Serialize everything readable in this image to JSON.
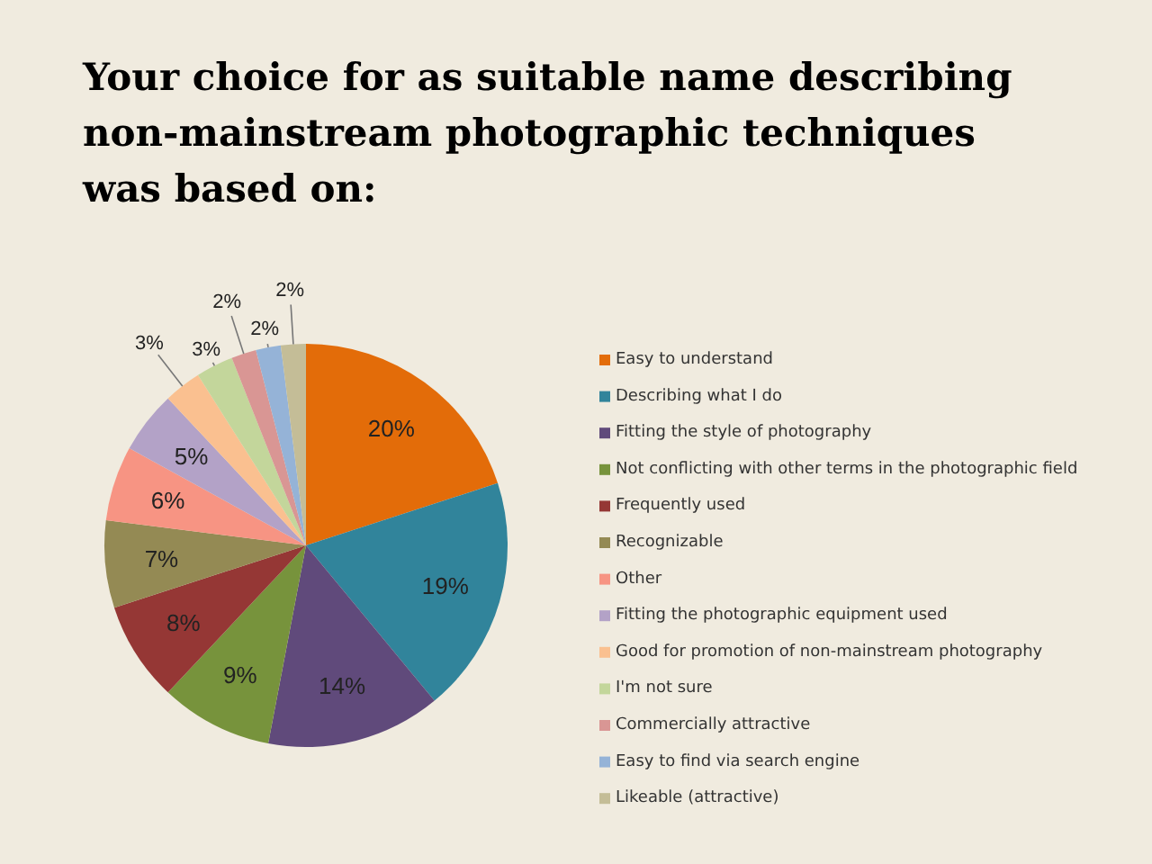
{
  "chart_data": {
    "type": "pie",
    "title": "Your choice for as suitable name describing\nnon-mainstream photographic techniques\nwas based on:",
    "categories": [
      "Easy to understand",
      "Describing what I do",
      "Fitting the style of photography",
      "Not conflicting with other terms in the photographic field",
      "Frequently used",
      "Recognizable",
      "Other",
      "Fitting the photographic equipment used",
      "Good for promotion of non-mainstream photography",
      "I'm not sure",
      "Commercially attractive",
      "Easy to find via search engine",
      "Likeable (attractive)"
    ],
    "values": [
      20,
      19,
      14,
      9,
      8,
      7,
      6,
      5,
      3,
      3,
      2,
      2,
      2
    ],
    "value_labels": [
      "20%",
      "19%",
      "14%",
      "9%",
      "8%",
      "7%",
      "6%",
      "5%",
      "3%",
      "3%",
      "2%",
      "2%",
      "2%"
    ],
    "colors": [
      "#e36c09",
      "#31849b",
      "#604a7b",
      "#77933c",
      "#953735",
      "#948a54",
      "#f79483",
      "#b3a2c7",
      "#fac090",
      "#c3d69b",
      "#d99694",
      "#95b3d7",
      "#c4bd97"
    ],
    "legend": "right"
  }
}
